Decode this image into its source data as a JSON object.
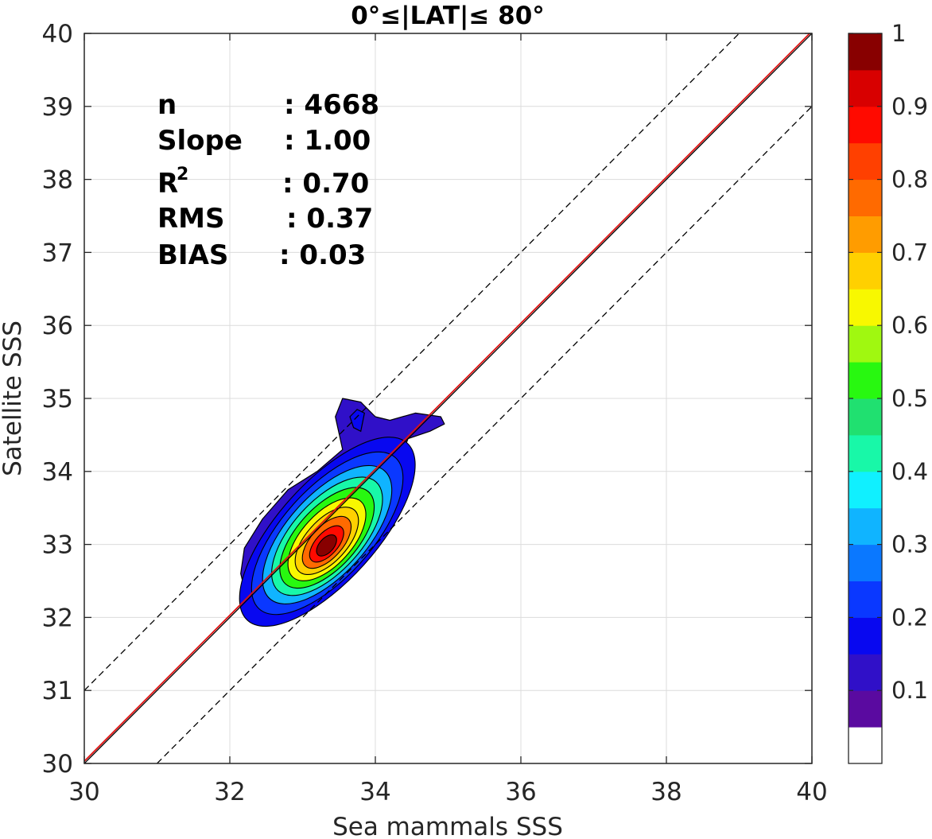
{
  "chart_data": {
    "type": "contour",
    "title": "0°≤|LAT|≤ 80°",
    "xlabel": "Sea mammals SSS",
    "ylabel": "Satellite SSS",
    "xlim": [
      30,
      40
    ],
    "ylim": [
      30,
      40
    ],
    "xticks": [
      "30",
      "32",
      "34",
      "36",
      "38",
      "40"
    ],
    "yticks": [
      "30",
      "31",
      "32",
      "33",
      "34",
      "35",
      "36",
      "37",
      "38",
      "39",
      "40"
    ],
    "grid": true,
    "stats": [
      {
        "label": "n",
        "value": ": 4668"
      },
      {
        "label": "Slope",
        "value": ": 1.00"
      },
      {
        "label": "R",
        "sup": "2",
        "value": ": 0.70"
      },
      {
        "label": "RMS",
        "value": ": 0.37"
      },
      {
        "label": "BIAS",
        "value": ": 0.03"
      }
    ],
    "lines": [
      {
        "kind": "1:1",
        "color": "#000000",
        "style": "solid",
        "x": [
          30,
          40
        ],
        "y": [
          30,
          40
        ]
      },
      {
        "kind": "fit",
        "color": "#e01010",
        "style": "solid",
        "x": [
          30,
          40
        ],
        "y": [
          30.03,
          40.03
        ]
      },
      {
        "kind": "+1",
        "color": "#000000",
        "style": "dashed",
        "x": [
          30,
          39
        ],
        "y": [
          31,
          40
        ]
      },
      {
        "kind": "-1",
        "color": "#000000",
        "style": "dashed",
        "x": [
          31,
          40
        ],
        "y": [
          30,
          39
        ]
      }
    ],
    "density_peak": {
      "x": 33.1,
      "y": 33.0
    },
    "colorbar": {
      "ticks": [
        "0.1",
        "0.2",
        "0.3",
        "0.4",
        "0.5",
        "0.6",
        "0.7",
        "0.8",
        "0.9",
        "1"
      ],
      "colors": [
        "#ffffff",
        "#5a0aa0",
        "#3010c8",
        "#0808f0",
        "#0a38ff",
        "#0a78ff",
        "#10b4ff",
        "#10f0ff",
        "#18f8a8",
        "#20e070",
        "#28f810",
        "#a0f810",
        "#f8f800",
        "#ffd000",
        "#ff9c00",
        "#ff6a00",
        "#ff4000",
        "#ff0a00",
        "#d80000",
        "#880000"
      ]
    }
  }
}
